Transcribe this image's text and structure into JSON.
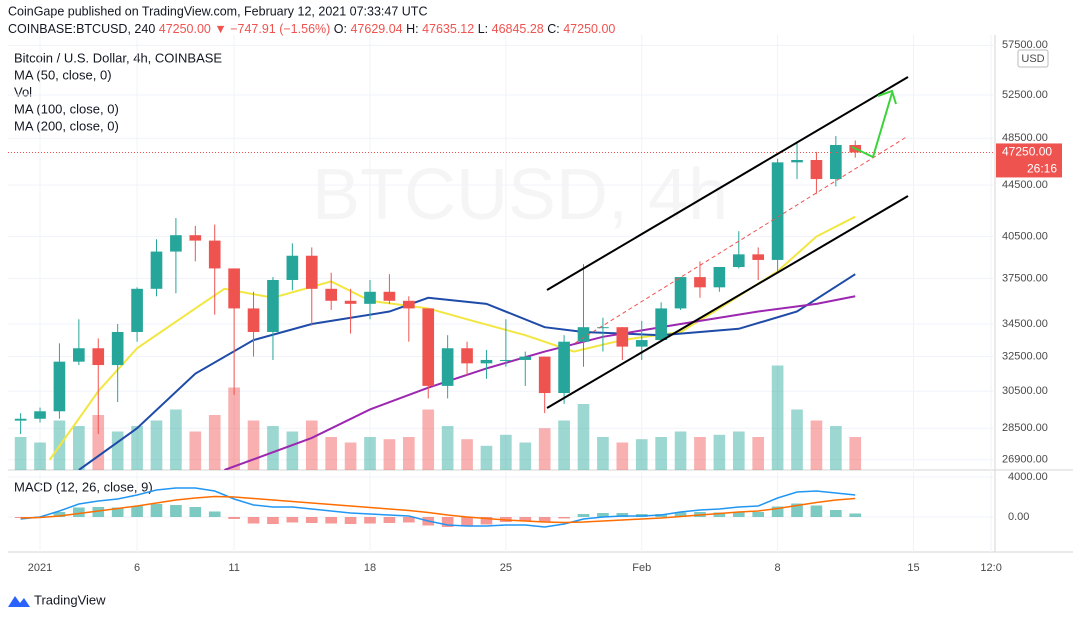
{
  "header": {
    "published": "CoinGape published on TradingView.com, February 12, 2021 07:33:47 UTC",
    "symbol": "COINBASE:BTCUSD, 240",
    "last": "47250.00",
    "change": "▼ −747.91 (−1.56%)",
    "ohlc": [
      {
        "label": "O:",
        "value": "47629.04"
      },
      {
        "label": "H:",
        "value": "47635.12"
      },
      {
        "label": "L:",
        "value": "46845.28"
      },
      {
        "label": "C:",
        "value": "47250.00"
      }
    ],
    "legend": [
      "Bitcoin / U.S. Dollar, 4h, COINBASE",
      "MA (50, close, 0)",
      "Vol",
      "MA (100, close, 0)",
      "MA (200, close, 0)"
    ],
    "watermark": "BTCUSD, 4h",
    "currency": "USD",
    "footer": "TradingView"
  },
  "chart_data": {
    "type": "candlestick",
    "log_scale": true,
    "ylim": [
      26400,
      58600
    ],
    "yticks": [
      {
        "value": 57500,
        "label": "57500.00"
      },
      {
        "value": 52500,
        "label": "52500.00"
      },
      {
        "value": 48500,
        "label": "48500.00"
      },
      {
        "value": 44500,
        "label": "44500.00"
      },
      {
        "value": 40500,
        "label": "40500.00"
      },
      {
        "value": 37500,
        "label": "37500.00"
      },
      {
        "value": 34500,
        "label": "34500.00"
      },
      {
        "value": 32500,
        "label": "32500.00"
      },
      {
        "value": 30500,
        "label": "30500.00"
      },
      {
        "value": 28500,
        "label": "28500.00"
      },
      {
        "value": 26900,
        "label": "26900.00"
      }
    ],
    "xlim": [
      -1.65,
      49.2
    ],
    "xticks": [
      {
        "value": 0,
        "label": "2021"
      },
      {
        "value": 5,
        "label": "6"
      },
      {
        "value": 10,
        "label": "11"
      },
      {
        "value": 17,
        "label": "18"
      },
      {
        "value": 24,
        "label": "25"
      },
      {
        "value": 31,
        "label": "Feb"
      },
      {
        "value": 38,
        "label": "8"
      },
      {
        "value": 45,
        "label": "15"
      },
      {
        "value": 49,
        "label": "12:0"
      }
    ],
    "up_color": "#26a69a",
    "down_color": "#ef5350",
    "current_price": {
      "value": 47250,
      "label": "47250.00"
    },
    "countdown": "26:16",
    "x": [
      -1,
      0,
      1,
      2,
      3,
      4,
      5,
      6,
      7,
      8,
      9,
      10,
      11,
      12,
      13,
      14,
      15,
      16,
      17,
      18,
      19,
      20,
      21,
      22,
      23,
      24,
      25,
      26,
      27,
      28,
      29,
      30,
      31,
      32,
      33,
      34,
      35,
      36,
      37,
      38,
      39,
      40,
      41,
      42
    ],
    "open": [
      28900,
      29000,
      29400,
      32200,
      33000,
      32000,
      34000,
      36800,
      39400,
      40600,
      40200,
      38200,
      35500,
      34000,
      37400,
      39100,
      36800,
      36000,
      35800,
      36600,
      36000,
      35500,
      30800,
      33000,
      32100,
      32300,
      32300,
      32500,
      30400,
      33400,
      34300,
      34300,
      33100,
      33500,
      35500,
      37600,
      36900,
      38300,
      39200,
      38800,
      46400,
      46600,
      45000,
      47900
    ],
    "high": [
      29300,
      29600,
      33300,
      34800,
      33600,
      34500,
      36900,
      40300,
      41900,
      41300,
      41400,
      38200,
      36600,
      37600,
      40000,
      39700,
      37900,
      36800,
      37400,
      37800,
      36300,
      35500,
      33800,
      33400,
      32900,
      34800,
      32800,
      32500,
      33800,
      38500,
      34900,
      34300,
      34700,
      35900,
      37600,
      38700,
      38300,
      40900,
      39700,
      46700,
      48100,
      47300,
      48700,
      48300
    ],
    "low": [
      28200,
      28800,
      29000,
      32000,
      28200,
      29900,
      33400,
      36300,
      36500,
      38700,
      35100,
      30300,
      32500,
      32300,
      36700,
      34400,
      35400,
      33900,
      34800,
      35800,
      33400,
      30100,
      30100,
      31400,
      31200,
      31900,
      30800,
      29300,
      29800,
      31900,
      32800,
      32300,
      32300,
      33400,
      35400,
      36200,
      36600,
      38200,
      37400,
      38000,
      45000,
      43800,
      44400,
      46800
    ],
    "close": [
      29000,
      29400,
      32200,
      33000,
      32000,
      34000,
      36800,
      39400,
      40600,
      40200,
      38200,
      35500,
      34000,
      37400,
      39100,
      36800,
      36000,
      35800,
      36600,
      36000,
      35500,
      30800,
      33000,
      32100,
      32300,
      32300,
      32500,
      30400,
      33400,
      34300,
      34300,
      33100,
      33500,
      35500,
      37600,
      36900,
      38300,
      39200,
      38800,
      46400,
      46600,
      45000,
      47900,
      47250
    ],
    "volume": {
      "max": 100,
      "values": [
        30,
        25,
        45,
        40,
        50,
        35,
        40,
        45,
        55,
        35,
        50,
        75,
        45,
        40,
        35,
        45,
        30,
        25,
        30,
        28,
        30,
        55,
        40,
        28,
        22,
        32,
        25,
        38,
        45,
        60,
        30,
        25,
        28,
        30,
        35,
        30,
        32,
        35,
        30,
        95,
        55,
        45,
        40,
        30
      ]
    },
    "moving_averages": [
      {
        "name": "MA (50, close, 0)",
        "color": "#f2e640",
        "x": [
          0.5,
          3,
          5,
          8,
          9.5,
          12,
          15,
          17,
          20,
          22,
          25,
          27.5,
          30,
          33,
          35,
          38,
          40,
          42
        ],
        "values": [
          26900,
          30500,
          33000,
          35500,
          36800,
          36200,
          37300,
          36000,
          35500,
          34800,
          33800,
          32800,
          33500,
          34000,
          35500,
          38000,
          40500,
          42000
        ]
      },
      {
        "name": "MA (100, close, 0)",
        "color": "#1f4ba8",
        "x": [
          2,
          5,
          8,
          11,
          14,
          18,
          20,
          23,
          26,
          28,
          32,
          36,
          39,
          42
        ],
        "values": [
          26400,
          28500,
          31500,
          33500,
          34500,
          35300,
          36200,
          35800,
          34300,
          34000,
          33800,
          34200,
          35300,
          37800
        ]
      },
      {
        "name": "MA (200, close, 0)",
        "color": "#9c27b0",
        "x": [
          9.5,
          14,
          17,
          20,
          23,
          26,
          29,
          33,
          37,
          40,
          42
        ],
        "values": [
          26400,
          28000,
          29500,
          30700,
          31800,
          32800,
          33700,
          34500,
          35300,
          35800,
          36300
        ]
      }
    ],
    "macd": {
      "title": "MACD (12, 26, close, 9)",
      "ylim": [
        -3500,
        4500
      ],
      "yticks": [
        {
          "value": 4000,
          "label": "4000.00"
        },
        {
          "value": 0,
          "label": "0.00"
        }
      ],
      "macd_color": "#2196f3",
      "signal_color": "#ff6d00",
      "macd": [
        -200,
        0,
        600,
        1300,
        1600,
        1800,
        2200,
        2700,
        2900,
        2900,
        2600,
        1800,
        1200,
        1000,
        1000,
        800,
        600,
        400,
        300,
        200,
        100,
        -400,
        -800,
        -900,
        -900,
        -800,
        -800,
        -1000,
        -700,
        -200,
        0,
        100,
        100,
        200,
        500,
        700,
        800,
        1000,
        1100,
        1900,
        2500,
        2600,
        2400,
        2200
      ],
      "signal": [
        -100,
        -50,
        100,
        350,
        600,
        850,
        1100,
        1400,
        1700,
        1900,
        2050,
        2000,
        1850,
        1700,
        1550,
        1400,
        1250,
        1100,
        950,
        800,
        650,
        450,
        200,
        0,
        -150,
        -300,
        -400,
        -500,
        -550,
        -500,
        -400,
        -300,
        -200,
        -100,
        50,
        200,
        350,
        500,
        600,
        850,
        1150,
        1450,
        1700,
        1850
      ],
      "histogram": [
        -100,
        50,
        500,
        950,
        1000,
        950,
        1100,
        1300,
        1200,
        1000,
        550,
        -200,
        -650,
        -700,
        -550,
        -600,
        -650,
        -700,
        -650,
        -600,
        -550,
        -850,
        -1000,
        -900,
        -750,
        -500,
        -400,
        -500,
        -150,
        300,
        400,
        400,
        300,
        300,
        450,
        500,
        450,
        500,
        500,
        1050,
        1350,
        1150,
        700,
        350
      ]
    }
  }
}
